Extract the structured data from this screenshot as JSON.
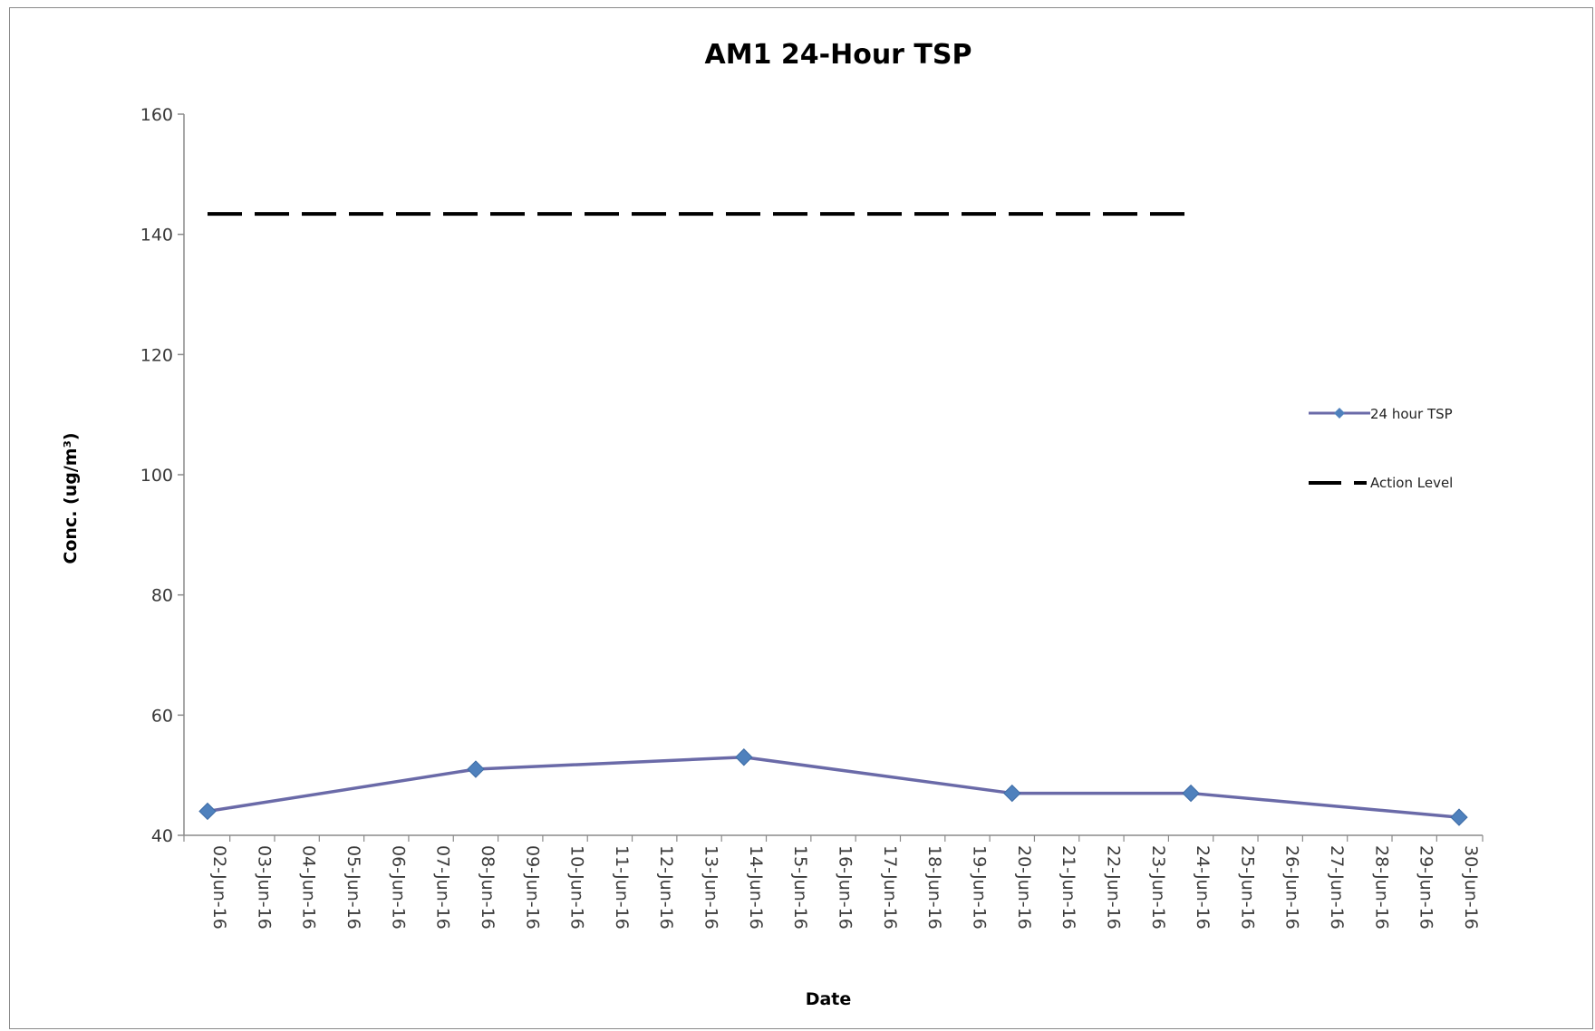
{
  "chart_data": {
    "type": "line",
    "title": "AM1 24-Hour TSP",
    "xlabel": "Date",
    "ylabel": "Conc. (ug/m³)",
    "ylim": [
      40,
      160
    ],
    "yticks": [
      40,
      60,
      80,
      100,
      120,
      140,
      160
    ],
    "grid": false,
    "legend_position": "right",
    "categories": [
      "02-Jun-16",
      "03-Jun-16",
      "04-Jun-16",
      "05-Jun-16",
      "06-Jun-16",
      "07-Jun-16",
      "08-Jun-16",
      "09-Jun-16",
      "10-Jun-16",
      "11-Jun-16",
      "12-Jun-16",
      "13-Jun-16",
      "14-Jun-16",
      "15-Jun-16",
      "16-Jun-16",
      "17-Jun-16",
      "18-Jun-16",
      "19-Jun-16",
      "20-Jun-16",
      "21-Jun-16",
      "22-Jun-16",
      "23-Jun-16",
      "24-Jun-16",
      "25-Jun-16",
      "26-Jun-16",
      "27-Jun-16",
      "28-Jun-16",
      "29-Jun-16",
      "30-Jun-16"
    ],
    "series": [
      {
        "name": "24 hour TSP",
        "style": "solid-marker",
        "color": "#6a6aa8",
        "marker_color": "#4f81bd",
        "points": [
          {
            "x": "02-Jun-16",
            "y": 44
          },
          {
            "x": "08-Jun-16",
            "y": 51
          },
          {
            "x": "14-Jun-16",
            "y": 53
          },
          {
            "x": "20-Jun-16",
            "y": 47
          },
          {
            "x": "24-Jun-16",
            "y": 47
          },
          {
            "x": "30-Jun-16",
            "y": 43
          }
        ]
      },
      {
        "name": "Action Level",
        "style": "dashed",
        "color": "#000000",
        "points": [
          {
            "x": "02-Jun-16",
            "y": 143.4
          },
          {
            "x": "24-Jun-16",
            "y": 143.4
          }
        ]
      }
    ]
  }
}
